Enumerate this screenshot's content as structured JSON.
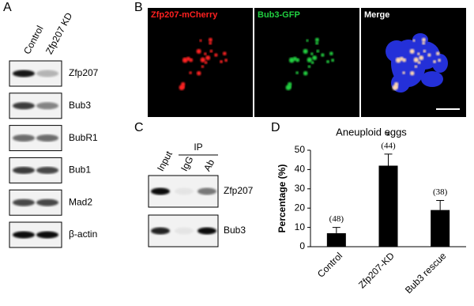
{
  "panel_labels": [
    "A",
    "B",
    "C",
    "D"
  ],
  "panel_a": {
    "columns": [
      "Control",
      "Zfp207 KD"
    ],
    "rows": [
      "Zfp207",
      "Bub3",
      "BubR1",
      "Bub1",
      "Mad2",
      "β-actin"
    ]
  },
  "panel_b": {
    "channels": [
      {
        "label": "Zfp207-mCherry",
        "color": "#ff2020"
      },
      {
        "label": "Bub3-GFP",
        "color": "#20d040"
      },
      {
        "label": "Merge",
        "color": "#ffffff"
      }
    ]
  },
  "panel_c": {
    "group": "IP",
    "lanes": [
      "Input",
      "IgG",
      "Ab"
    ],
    "rows": [
      "Zfp207",
      "Bub3"
    ]
  },
  "chart_data": {
    "type": "bar",
    "title": "Aneuploid eggs",
    "y_label": "Percentage (%)",
    "categories": [
      "Control",
      "Zfp207-KD",
      "Bub3 rescue"
    ],
    "values": [
      7,
      42,
      19
    ],
    "errors": [
      3,
      6,
      5
    ],
    "value_labels": [
      "(48)",
      "(44)",
      "(38)"
    ],
    "annotations": [
      {
        "category": "Zfp207-KD",
        "text": "*"
      }
    ],
    "color": "#000000",
    "ylim": [
      0,
      50
    ],
    "yticks": [
      0,
      10,
      20,
      30,
      40,
      50
    ]
  }
}
